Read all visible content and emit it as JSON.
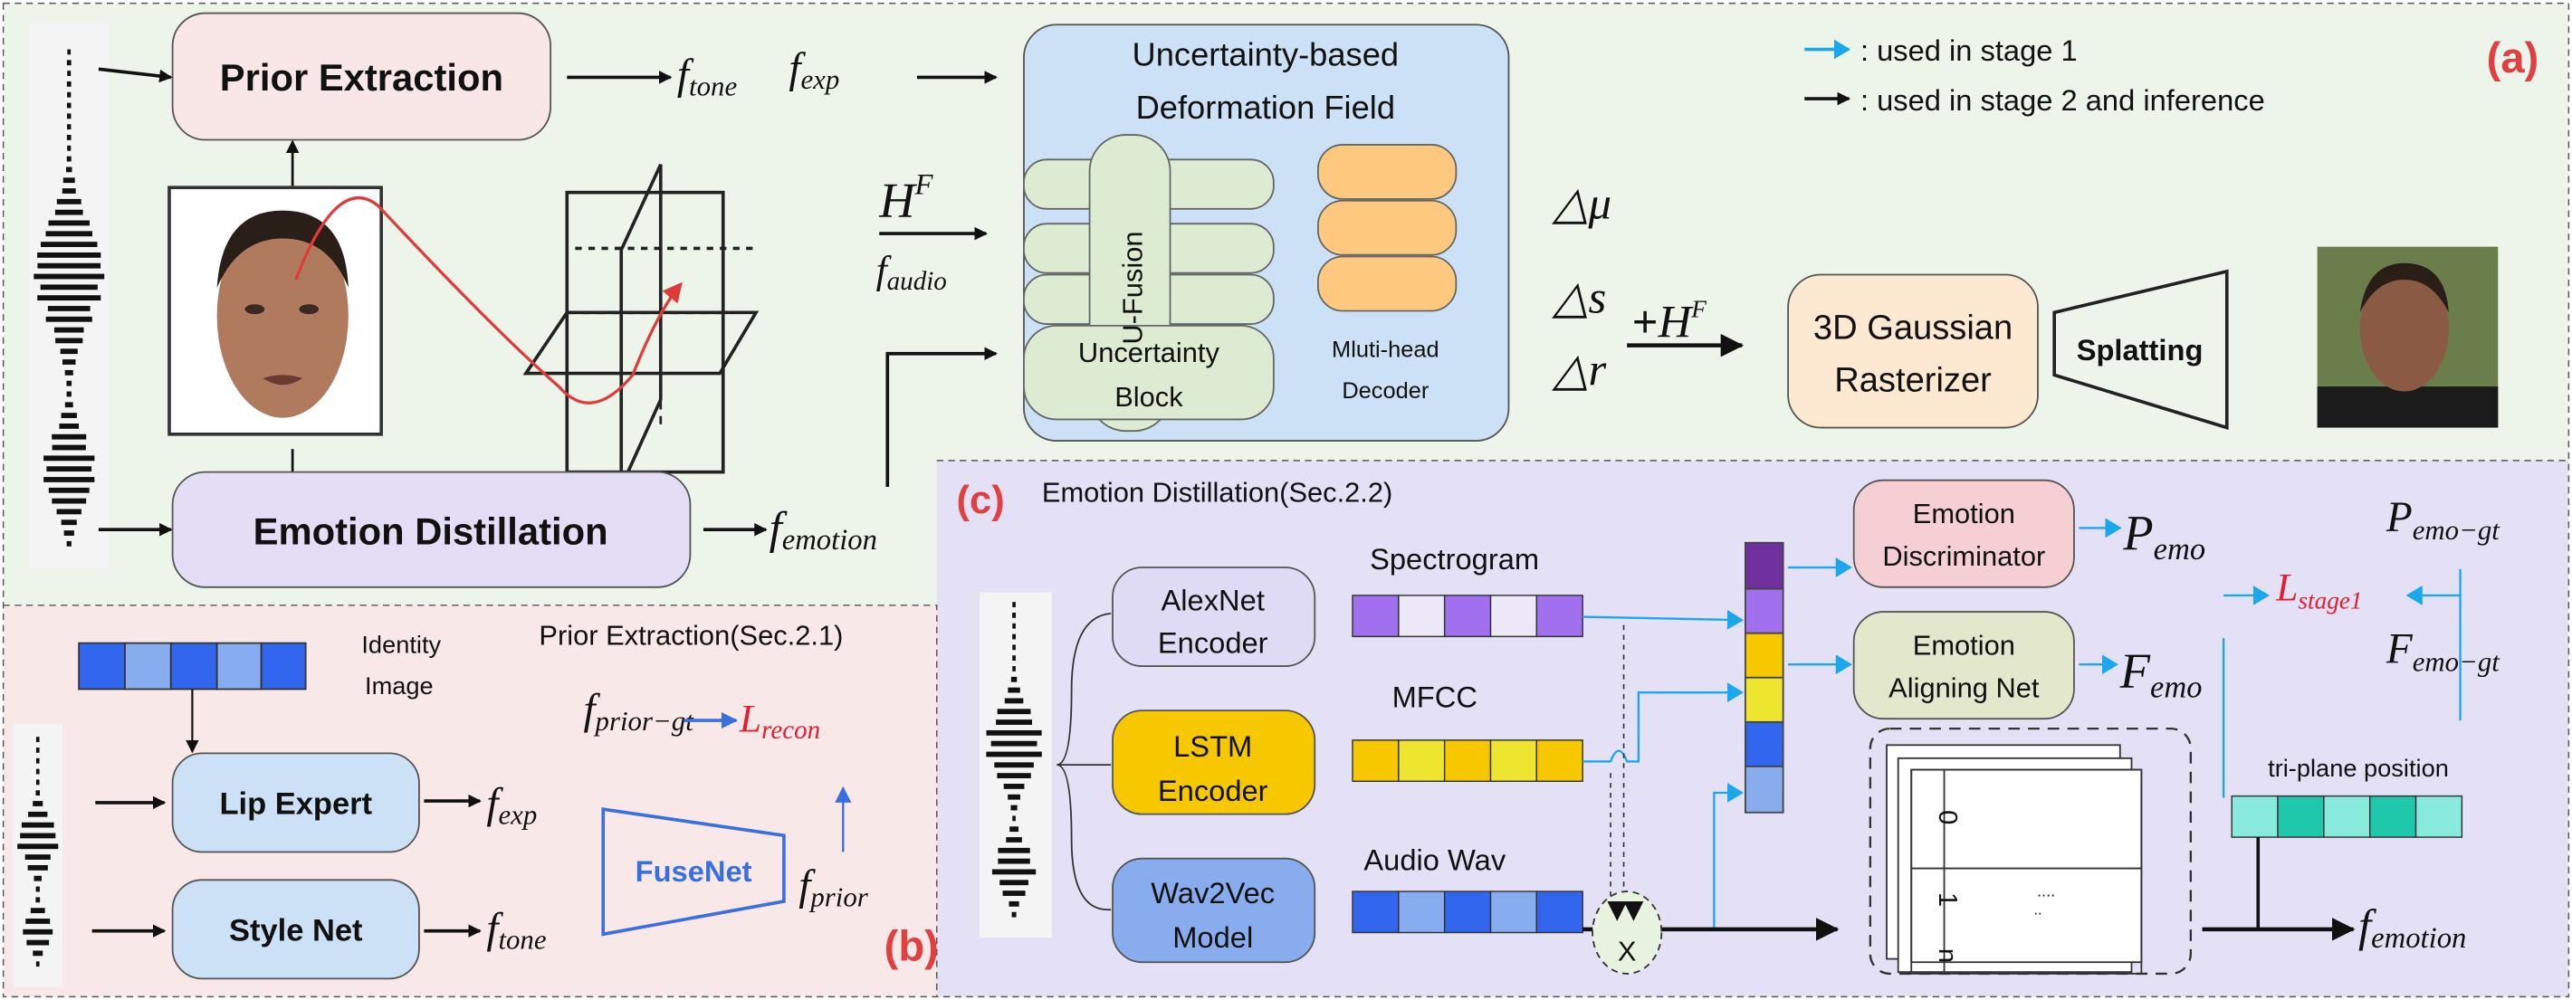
{
  "panel_labels": {
    "a": "(a)",
    "b": "(b)",
    "c": "(c)"
  },
  "legend": [
    {
      "text": ": used in stage 1",
      "color": "#1aa7ec"
    },
    {
      "text": ": used in stage 2 and inference",
      "color": "#111111"
    }
  ],
  "overview": {
    "prior_extraction": "Prior Extraction",
    "emotion_distillation": "Emotion Distillation",
    "f_tone": {
      "base": "f",
      "sub": "tone"
    },
    "f_exp": {
      "base": "f",
      "sub": "exp"
    },
    "h_f": {
      "base": "H",
      "sup": "F"
    },
    "f_audio": {
      "base": "f",
      "sub": "audio"
    },
    "f_emotion": {
      "base": "f",
      "sub": "emotion"
    },
    "deformation_title_1": "Uncertainty-based",
    "deformation_title_2": "Deformation Field",
    "u_fusion": "U-Fusion",
    "uncertainty_block_1": "Uncertainty",
    "uncertainty_block_2": "Block",
    "decoder_1": "Mluti-head",
    "decoder_2": "Decoder",
    "delta_mu": "△μ",
    "delta_s": "△s",
    "delta_r": "△r",
    "plus_h_f": {
      "plus": "+",
      "base": "H",
      "sup": "F"
    },
    "rasterizer_1": "3D Gaussian",
    "rasterizer_2": "Rasterizer",
    "splatting": "Splatting"
  },
  "prior_panel": {
    "title": "Prior Extraction(Sec.2.1)",
    "identity_1": "Identity",
    "identity_2": "Image",
    "lip_expert": "Lip Expert",
    "style_net": "Style Net",
    "fusenet": "FuseNet",
    "f_exp": {
      "base": "f",
      "sub": "exp"
    },
    "f_tone": {
      "base": "f",
      "sub": "tone"
    },
    "f_prior": {
      "base": "f",
      "sub": "prior"
    },
    "f_prior_gt": {
      "base": "f",
      "sub": "prior−gt"
    },
    "l_recon": {
      "base": "L",
      "sub": "recon"
    }
  },
  "emotion_panel": {
    "title": "Emotion Distillation(Sec.2.2)",
    "alexnet_1": "AlexNet",
    "alexnet_2": "Encoder",
    "lstm_1": "LSTM",
    "lstm_2": "Encoder",
    "wav2vec_1": "Wav2Vec",
    "wav2vec_2": "Model",
    "spectrogram": "Spectrogram",
    "mfcc": "MFCC",
    "audio_wav": "Audio Wav",
    "discriminator_1": "Emotion",
    "discriminator_2": "Discriminator",
    "aligning_1": "Emotion",
    "aligning_2": "Aligning Net",
    "p_emo": {
      "base": "P",
      "sub": "emo"
    },
    "f_emo": {
      "base": "F",
      "sub": "emo"
    },
    "p_emo_gt": {
      "base": "P",
      "sub": "emo−gt"
    },
    "f_emo_gt": {
      "base": "F",
      "sub": "emo−gt"
    },
    "l_stage1": {
      "base": "L",
      "sub": "stage1"
    },
    "multiply": "X",
    "card_indices": [
      "0",
      "1",
      "n"
    ],
    "card_ellipsis": "....",
    "card_dots": "..",
    "triplane": "tri-plane position",
    "f_emotion": {
      "base": "f",
      "sub": "emotion"
    }
  },
  "colors": {
    "bg_a": "#edf5ea",
    "bg_b": "#f9e8e8",
    "bg_c": "#e4e0f6",
    "stage1": "#1aa7ec",
    "fusenet": "#3a6fe0",
    "loss": "#e02030",
    "panel_label": "#e04545"
  }
}
